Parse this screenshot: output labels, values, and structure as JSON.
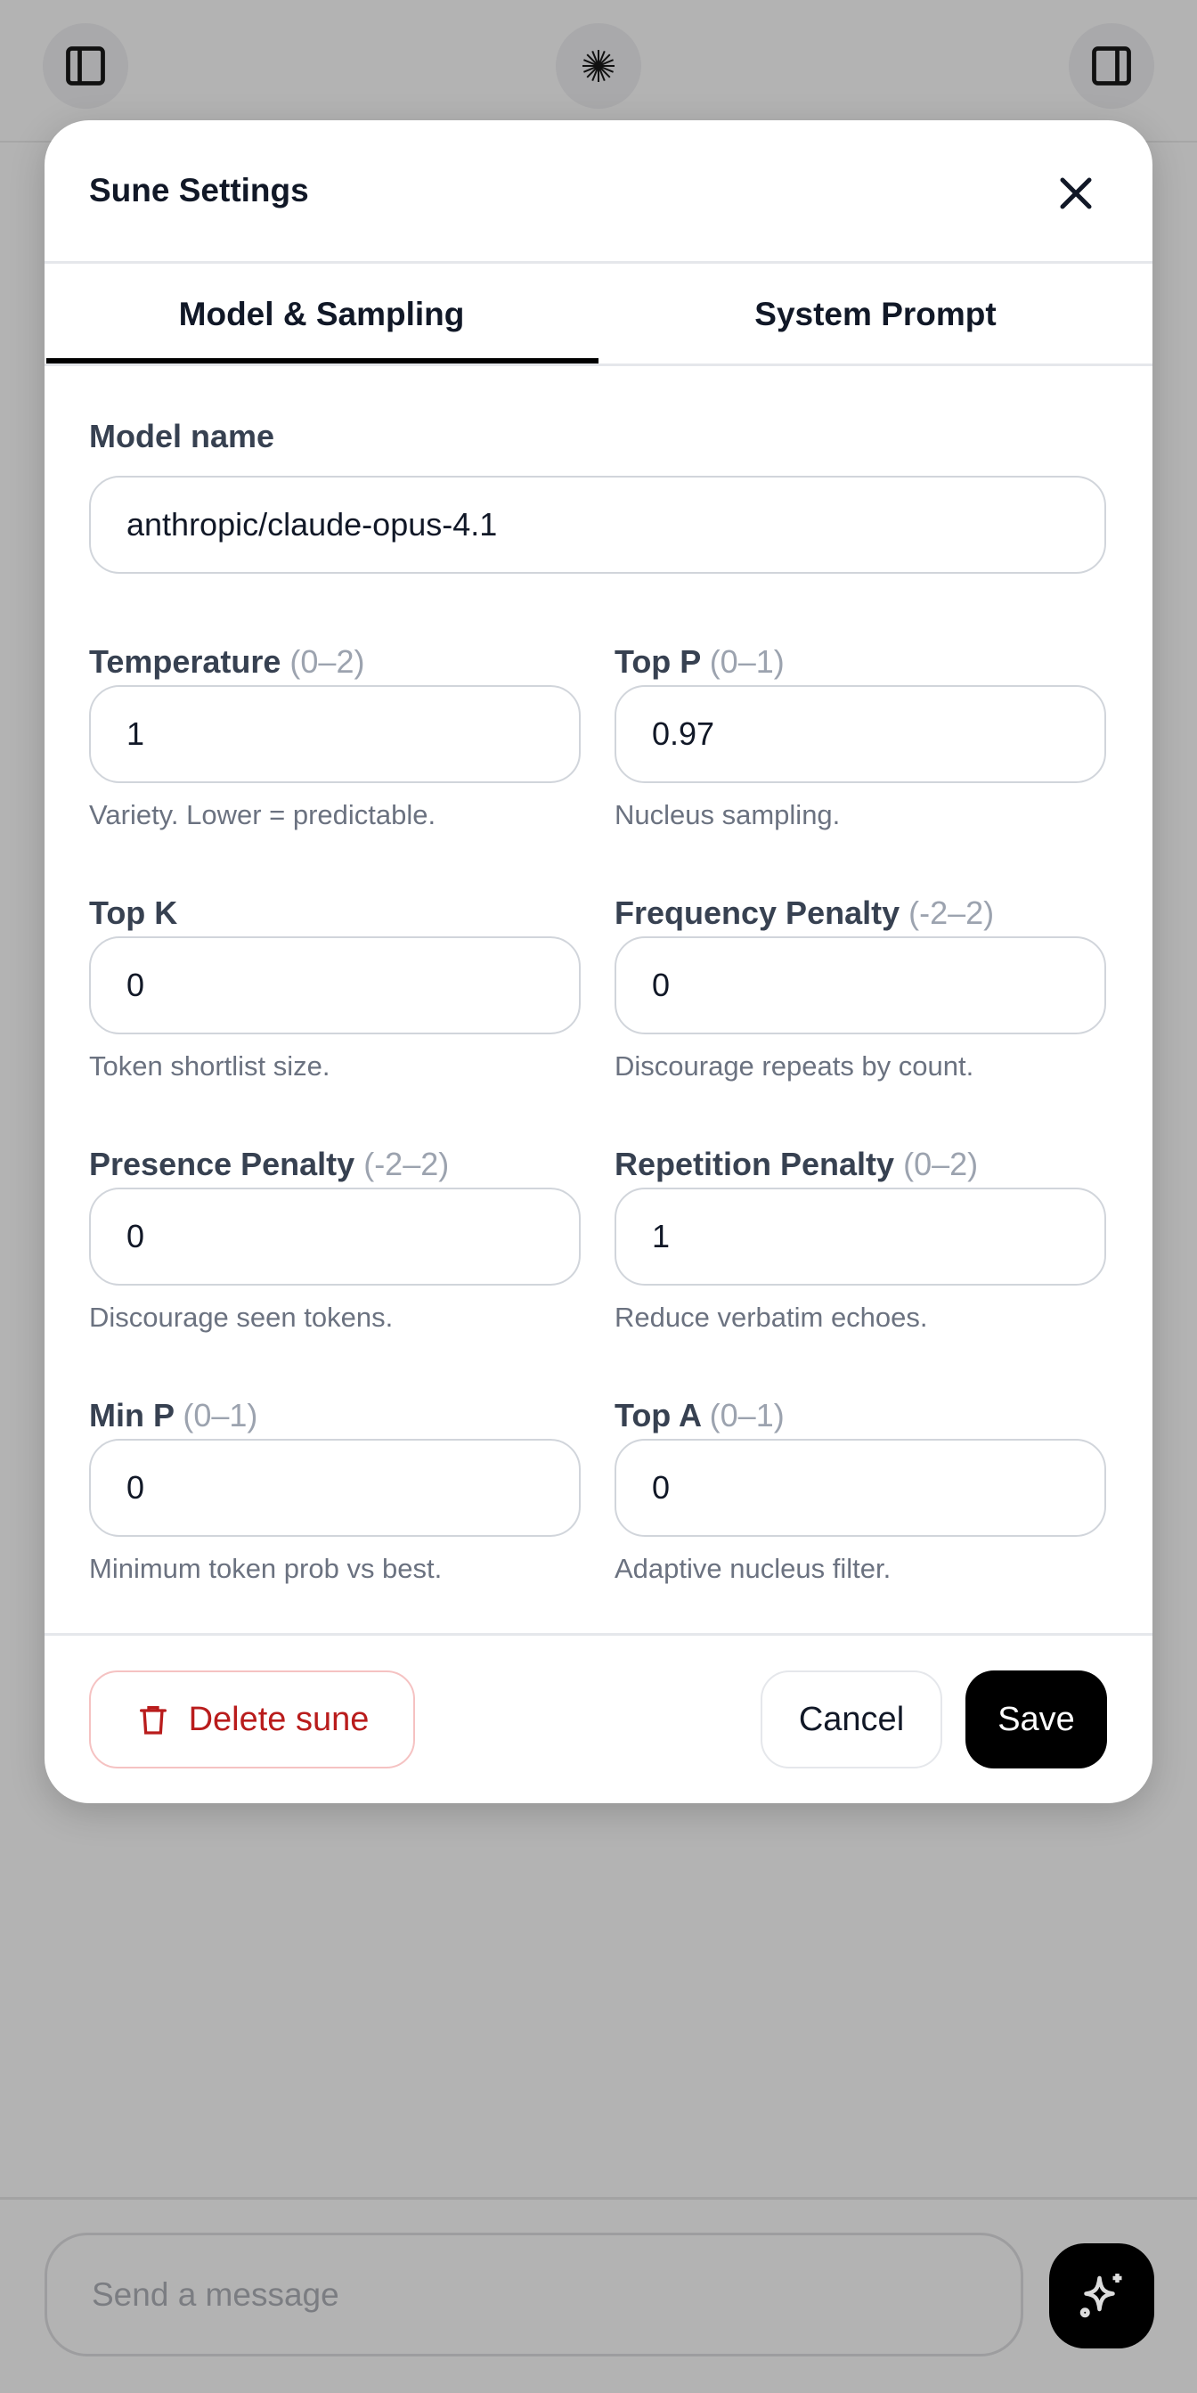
{
  "topbar": {
    "left_icon": "sidebar-left-icon",
    "center_icon": "sparkle-burst-icon",
    "right_icon": "sidebar-right-icon"
  },
  "modal": {
    "title": "Sune Settings",
    "close_icon": "close-icon",
    "tabs": [
      {
        "label": "Model & Sampling",
        "active": true
      },
      {
        "label": "System Prompt",
        "active": false
      }
    ],
    "model_name": {
      "label": "Model name",
      "value": "anthropic/claude-opus-4.1"
    },
    "fields": [
      {
        "label": "Temperature",
        "range": "(0–2)",
        "value": "1",
        "help": "Variety. Lower = predictable."
      },
      {
        "label": "Top P",
        "range": "(0–1)",
        "value": "0.97",
        "help": "Nucleus sampling."
      },
      {
        "label": "Top K",
        "range": "",
        "value": "0",
        "help": "Token shortlist size."
      },
      {
        "label": "Frequency Penalty",
        "range": "(-2–2)",
        "value": "0",
        "help": "Discourage repeats by count."
      },
      {
        "label": "Presence Penalty",
        "range": "(-2–2)",
        "value": "0",
        "help": "Discourage seen tokens."
      },
      {
        "label": "Repetition Penalty",
        "range": "(0–2)",
        "value": "1",
        "help": "Reduce verbatim echoes."
      },
      {
        "label": "Min P",
        "range": "(0–1)",
        "value": "0",
        "help": "Minimum token prob vs best."
      },
      {
        "label": "Top A",
        "range": "(0–1)",
        "value": "0",
        "help": "Adaptive nucleus filter."
      }
    ],
    "footer": {
      "delete_label": "Delete sune",
      "cancel_label": "Cancel",
      "save_label": "Save"
    },
    "colors": {
      "danger": "#b91c1c",
      "primary": "#000000"
    }
  },
  "composer": {
    "placeholder": "Send a message",
    "send_icon": "sparkles-icon"
  }
}
